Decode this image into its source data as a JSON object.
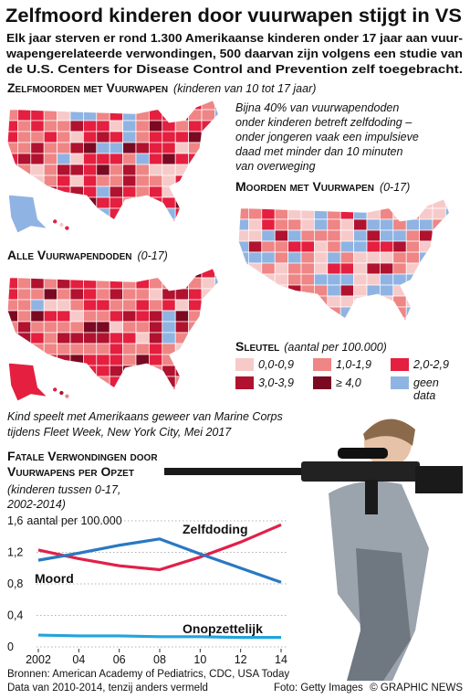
{
  "header": {
    "title": "Zelfmoord kinderen door vuurwapen stijgt in VS",
    "subtitle_lines": [
      "Elk jaar sterven er rond 1.300 Amerikaanse kinderen onder 17 jaar aan vuur-",
      "wapengerelateerde verwondingen, 500 daarvan zijn volgens een studie van",
      "de U.S. Centers for Disease Control and Prevention zelf toegebracht."
    ]
  },
  "maps": [
    {
      "title": "Zelfmoorden met Vuurwapen",
      "note": "(kinderen van 10 tot 17 jaar)"
    },
    {
      "title": "Moorden met Vuurwapen",
      "note": "(0-17)"
    },
    {
      "title": "Alle Vuurwapendoden",
      "note": "(0-17)"
    }
  ],
  "annotation_lines": [
    "Bijna 40% van vuurwapendoden",
    "onder kinderen betreft zelfdoding –",
    "onder jongeren vaak een impulsieve",
    "daad met minder dan 10 minuten",
    "van overweging"
  ],
  "legend": {
    "title": "Sleutel",
    "note": "(aantal per 100.000)",
    "items": [
      {
        "label_lines": [
          "0,0-0,9"
        ],
        "color": "#f7caca"
      },
      {
        "label_lines": [
          "1,0-1,9"
        ],
        "color": "#ef8585"
      },
      {
        "label_lines": [
          "2,0-2,9"
        ],
        "color": "#e41f3f"
      },
      {
        "label_lines": [
          "3,0-3,9"
        ],
        "color": "#b0122f"
      },
      {
        "label_lines": [
          "≥ 4,0"
        ],
        "color": "#7a0a22"
      },
      {
        "label_lines": [
          "geen",
          "data"
        ],
        "color": "#8fb4e3"
      }
    ]
  },
  "photo_caption_lines": [
    "Kind speelt met Amerikaans geweer van Marine Corps",
    "tijdens Fleet Week, New York City, Mei 2017"
  ],
  "chart_data": {
    "type": "line",
    "title_lines": [
      "Fatale Verwondingen door",
      "Vuurwapens per Opzet"
    ],
    "subtitle_lines": [
      "(kinderen tussen 0-17,",
      "2002-2014)"
    ],
    "y_unit_label": "aantal per 100.000",
    "x": [
      2002,
      2004,
      2006,
      2008,
      2010,
      2012,
      2014
    ],
    "xlim": [
      2002,
      2014
    ],
    "xticks": [
      2002,
      {
        "value": 2004,
        "label": "04"
      },
      {
        "value": 2006,
        "label": "06"
      },
      {
        "value": 2008,
        "label": "08"
      },
      {
        "value": 2010,
        "label": "10"
      },
      {
        "value": 2012,
        "label": "12"
      },
      {
        "value": 2014,
        "label": "14"
      }
    ],
    "ylim": [
      0,
      1.6
    ],
    "yticks": [
      0,
      {
        "value": 0.4,
        "label": "0,4"
      },
      {
        "value": 0.8,
        "label": "0,8"
      },
      {
        "value": 1.2,
        "label": "1,2"
      },
      {
        "value": 1.6,
        "label": "1,6"
      }
    ],
    "grid": true,
    "series": [
      {
        "name": "Zelfdoding",
        "color": "#e0204a",
        "values": [
          1.23,
          1.12,
          1.03,
          0.98,
          1.14,
          1.33,
          1.55
        ]
      },
      {
        "name": "Moord",
        "color": "#2a78c2",
        "values": [
          1.1,
          1.19,
          1.29,
          1.37,
          1.18,
          1.0,
          0.82
        ]
      },
      {
        "name": "Onopzettelijk",
        "color": "#22a4dc",
        "values": [
          0.15,
          0.14,
          0.14,
          0.13,
          0.13,
          0.12,
          0.12
        ]
      }
    ]
  },
  "footer": {
    "source_lines": [
      "Bronnen: American Academy of Pediatrics, CDC, USA Today",
      "Data van 2010-2014, tenzij anders vermeld"
    ],
    "photo_credit": "Foto: Getty Images",
    "copyright": "© GRAPHIC NEWS"
  }
}
